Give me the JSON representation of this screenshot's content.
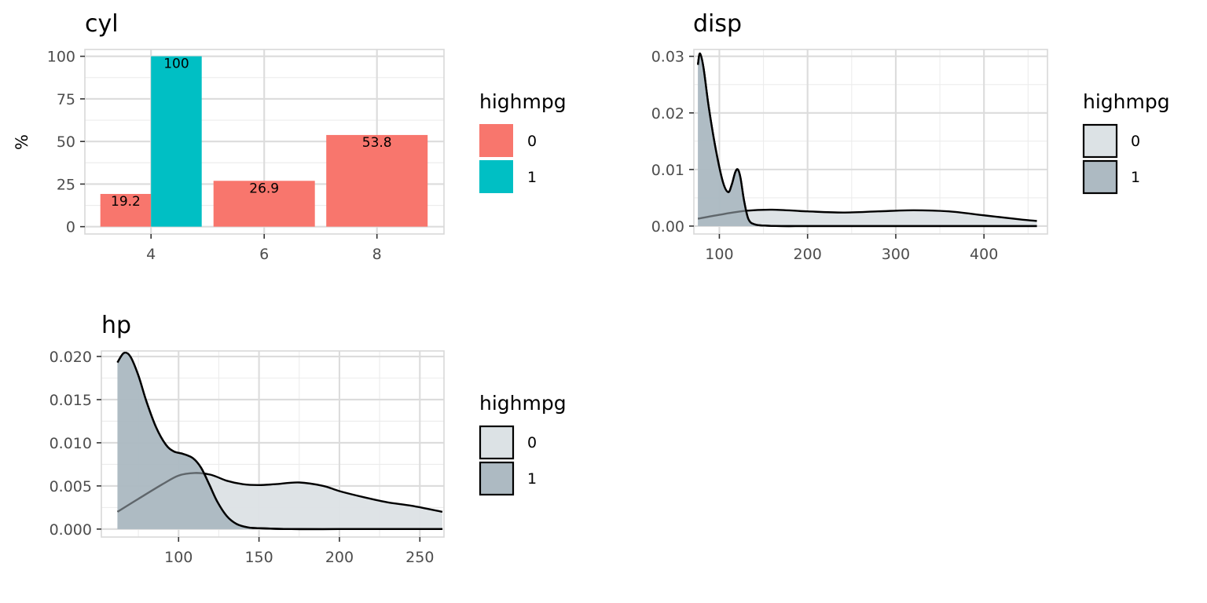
{
  "chart_data": [
    {
      "type": "bar",
      "title": "cyl",
      "xlabel": "",
      "ylabel": "%",
      "categories": [
        "4",
        "6",
        "8"
      ],
      "ylim": [
        0,
        100
      ],
      "y_ticks": [
        "0",
        "25",
        "50",
        "75",
        "100"
      ],
      "series": [
        {
          "name": "0",
          "color": "#F8766D",
          "values": [
            19.2,
            26.9,
            53.8
          ],
          "labels": [
            "19.2",
            "26.9",
            "53.8"
          ]
        },
        {
          "name": "1",
          "color": "#00BFC4",
          "values": [
            100,
            null,
            null
          ],
          "labels": [
            "100",
            "",
            ""
          ]
        }
      ],
      "legend": {
        "title": "highmpg",
        "position": "right",
        "items": [
          "0",
          "1"
        ]
      },
      "grid": true
    },
    {
      "type": "area",
      "title": "disp",
      "xlabel": "",
      "ylabel": "",
      "xlim": [
        71.1,
        472
      ],
      "ylim": [
        0,
        0.031
      ],
      "x_ticks": [
        "100",
        "200",
        "300",
        "400"
      ],
      "y_ticks": [
        "0.00",
        "0.01",
        "0.02",
        "0.03"
      ],
      "series": [
        {
          "name": "0",
          "color": "#DCE2E5",
          "x": [
            75.7,
            100,
            130,
            160,
            200,
            240,
            280,
            320,
            360,
            400,
            440,
            460
          ],
          "y": [
            0.0013,
            0.002,
            0.0027,
            0.0029,
            0.0026,
            0.0024,
            0.0026,
            0.0028,
            0.0026,
            0.0019,
            0.0012,
            0.0009
          ]
        },
        {
          "name": "1",
          "color": "#ADBAC2",
          "x": [
            75.7,
            78,
            82,
            88,
            96,
            104,
            110,
            114,
            118,
            121,
            124,
            128,
            133,
            140,
            150,
            170,
            200,
            260,
            320,
            400,
            460
          ],
          "y": [
            0.0285,
            0.0305,
            0.028,
            0.021,
            0.0135,
            0.0078,
            0.006,
            0.0073,
            0.0095,
            0.01,
            0.0085,
            0.0045,
            0.0012,
            0.0003,
            0.0001,
            0,
            0,
            0,
            0,
            0,
            0
          ]
        }
      ],
      "legend": {
        "title": "highmpg",
        "position": "right",
        "items": [
          "0",
          "1"
        ]
      },
      "grid": true
    },
    {
      "type": "area",
      "title": "hp",
      "xlabel": "",
      "ylabel": "",
      "xlim": [
        52,
        265
      ],
      "ylim": [
        0,
        0.0205
      ],
      "x_ticks": [
        "100",
        "150",
        "200",
        "250"
      ],
      "y_ticks": [
        "0.000",
        "0.005",
        "0.010",
        "0.015",
        "0.020"
      ],
      "series": [
        {
          "name": "0",
          "color": "#DCE2E5",
          "x": [
            62,
            75,
            90,
            100,
            110,
            120,
            130,
            140,
            150,
            160,
            175,
            190,
            200,
            215,
            230,
            245,
            264
          ],
          "y": [
            0.002,
            0.0035,
            0.0052,
            0.0062,
            0.0065,
            0.0063,
            0.0056,
            0.0052,
            0.0051,
            0.0052,
            0.0054,
            0.005,
            0.0044,
            0.0037,
            0.0031,
            0.0027,
            0.002
          ]
        },
        {
          "name": "1",
          "color": "#ADBAC2",
          "x": [
            62,
            66,
            70,
            75,
            80,
            86,
            92,
            97,
            103,
            109,
            114,
            119,
            124,
            130,
            136,
            143,
            150,
            170,
            200,
            230,
            264
          ],
          "y": [
            0.0193,
            0.0204,
            0.02,
            0.0178,
            0.0148,
            0.0118,
            0.0098,
            0.009,
            0.0087,
            0.0082,
            0.0071,
            0.0052,
            0.0032,
            0.0015,
            0.0006,
            0.0002,
            0.0001,
            0,
            0,
            0,
            0
          ]
        }
      ],
      "legend": {
        "title": "highmpg",
        "position": "right",
        "items": [
          "0",
          "1"
        ]
      },
      "grid": true
    }
  ]
}
